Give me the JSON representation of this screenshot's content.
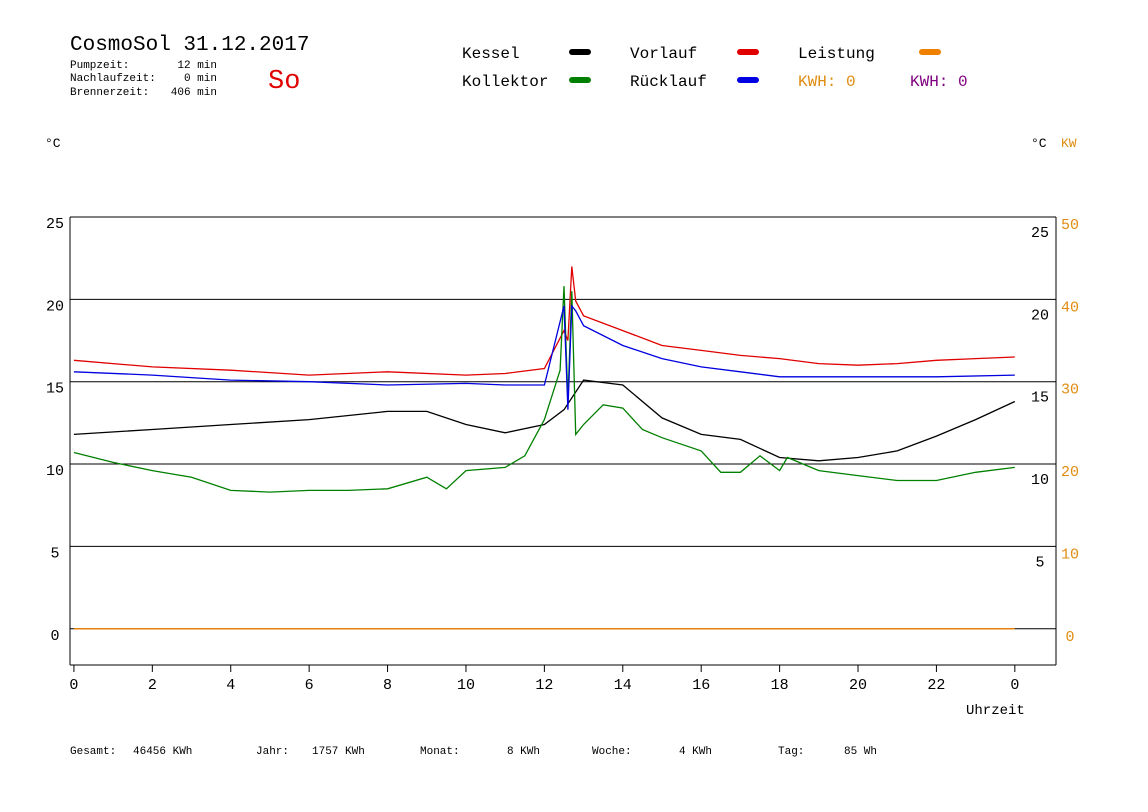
{
  "chart_data": {
    "type": "line",
    "title": "CosmoSol 31.12.2017",
    "day": "So",
    "stats": [
      {
        "label": "Pumpzeit:",
        "value": "12 min"
      },
      {
        "label": "Nachlaufzeit:",
        "value": "0 min"
      },
      {
        "label": "Brennerzeit:",
        "value": "406 min"
      }
    ],
    "y_unit": "°C",
    "y2_units": [
      "°C",
      "KW"
    ],
    "x_label": "Uhrzeit",
    "energy_labels": [
      {
        "text": "KWH: 0",
        "color": "#e08c10"
      },
      {
        "text": "KWH: 0",
        "color": "#800080"
      }
    ],
    "footer": [
      {
        "label": "Gesamt:",
        "value": "46456 KWh"
      },
      {
        "label": "Jahr:",
        "value": "1757 KWh"
      },
      {
        "label": "Monat:",
        "value": "8 KWh"
      },
      {
        "label": "Woche:",
        "value": "4 KWh"
      },
      {
        "label": "Tag:",
        "value": "85 Wh"
      }
    ],
    "xlim": [
      -0.1,
      25.05
    ],
    "xticks": [
      0,
      2,
      4,
      6,
      8,
      10,
      12,
      14,
      16,
      18,
      20,
      22,
      {
        "value": 24,
        "label": "0"
      }
    ],
    "ylim": [
      -2.2,
      25
    ],
    "yticks": [
      0,
      5,
      10,
      15,
      20,
      25
    ],
    "y2lim": [
      -4.4,
      50
    ],
    "y2ticks": [
      0,
      10,
      20,
      30,
      40,
      50
    ],
    "y2_color": "#e08c10",
    "grid": true,
    "series": [
      {
        "name": "Kessel",
        "color": "#000000",
        "x": [
          0,
          2,
          4,
          6,
          8,
          9,
          10,
          11,
          12,
          12.5,
          13,
          14,
          15,
          16,
          17,
          18,
          19,
          20,
          21,
          22,
          23,
          24
        ],
        "values": [
          11.8,
          12.1,
          12.4,
          12.7,
          13.2,
          13.2,
          12.4,
          11.9,
          12.4,
          13.3,
          15.1,
          14.8,
          12.8,
          11.8,
          11.5,
          10.4,
          10.2,
          10.4,
          10.8,
          11.7,
          12.7,
          13.8
        ]
      },
      {
        "name": "Vorlauf",
        "color": "#e00000",
        "x": [
          0,
          2,
          4,
          6,
          8,
          10,
          11,
          12,
          12.5,
          12.6,
          12.7,
          12.8,
          13,
          14,
          15,
          16,
          17,
          18,
          19,
          20,
          21,
          22,
          23,
          24
        ],
        "values": [
          16.3,
          15.9,
          15.7,
          15.4,
          15.6,
          15.4,
          15.5,
          15.8,
          18.1,
          17.5,
          22,
          19.9,
          19,
          18.1,
          17.2,
          16.9,
          16.6,
          16.4,
          16.1,
          16,
          16.1,
          16.3,
          16.4,
          16.5
        ]
      },
      {
        "name": "Leistung",
        "color": "#f08000",
        "axis": "y2",
        "x": [
          0,
          24
        ],
        "values": [
          0,
          0
        ]
      },
      {
        "name": "Kollektor",
        "color": "#008000",
        "x": [
          0,
          1,
          2,
          3,
          4,
          5,
          6,
          7,
          8,
          9,
          9.5,
          10,
          11,
          11.5,
          12,
          12.4,
          12.5,
          12.6,
          12.7,
          12.8,
          13,
          13.5,
          14,
          14.5,
          15,
          16,
          16.5,
          17,
          17.5,
          18,
          18.2,
          19,
          20,
          21,
          22,
          23,
          24
        ],
        "values": [
          10.7,
          10.1,
          9.6,
          9.2,
          8.4,
          8.3,
          8.4,
          8.4,
          8.5,
          9.2,
          8.5,
          9.6,
          9.8,
          10.5,
          12.7,
          15.7,
          20.8,
          13.9,
          20.5,
          11.8,
          12.4,
          13.6,
          13.4,
          12.1,
          11.6,
          10.8,
          9.5,
          9.5,
          10.5,
          9.6,
          10.4,
          9.6,
          9.3,
          9,
          9,
          9.5,
          9.8
        ]
      },
      {
        "name": "Rücklauf",
        "color": "#0000e0",
        "x": [
          0,
          2,
          4,
          6,
          8,
          10,
          11,
          12,
          12.5,
          12.6,
          12.7,
          12.8,
          13,
          14,
          15,
          16,
          17,
          18,
          19,
          20,
          22,
          24
        ],
        "values": [
          15.6,
          15.4,
          15.1,
          15,
          14.8,
          14.9,
          14.8,
          14.8,
          19.6,
          13.3,
          19.6,
          19.3,
          18.4,
          17.2,
          16.4,
          15.9,
          15.6,
          15.3,
          15.3,
          15.3,
          15.3,
          15.4
        ]
      }
    ]
  }
}
